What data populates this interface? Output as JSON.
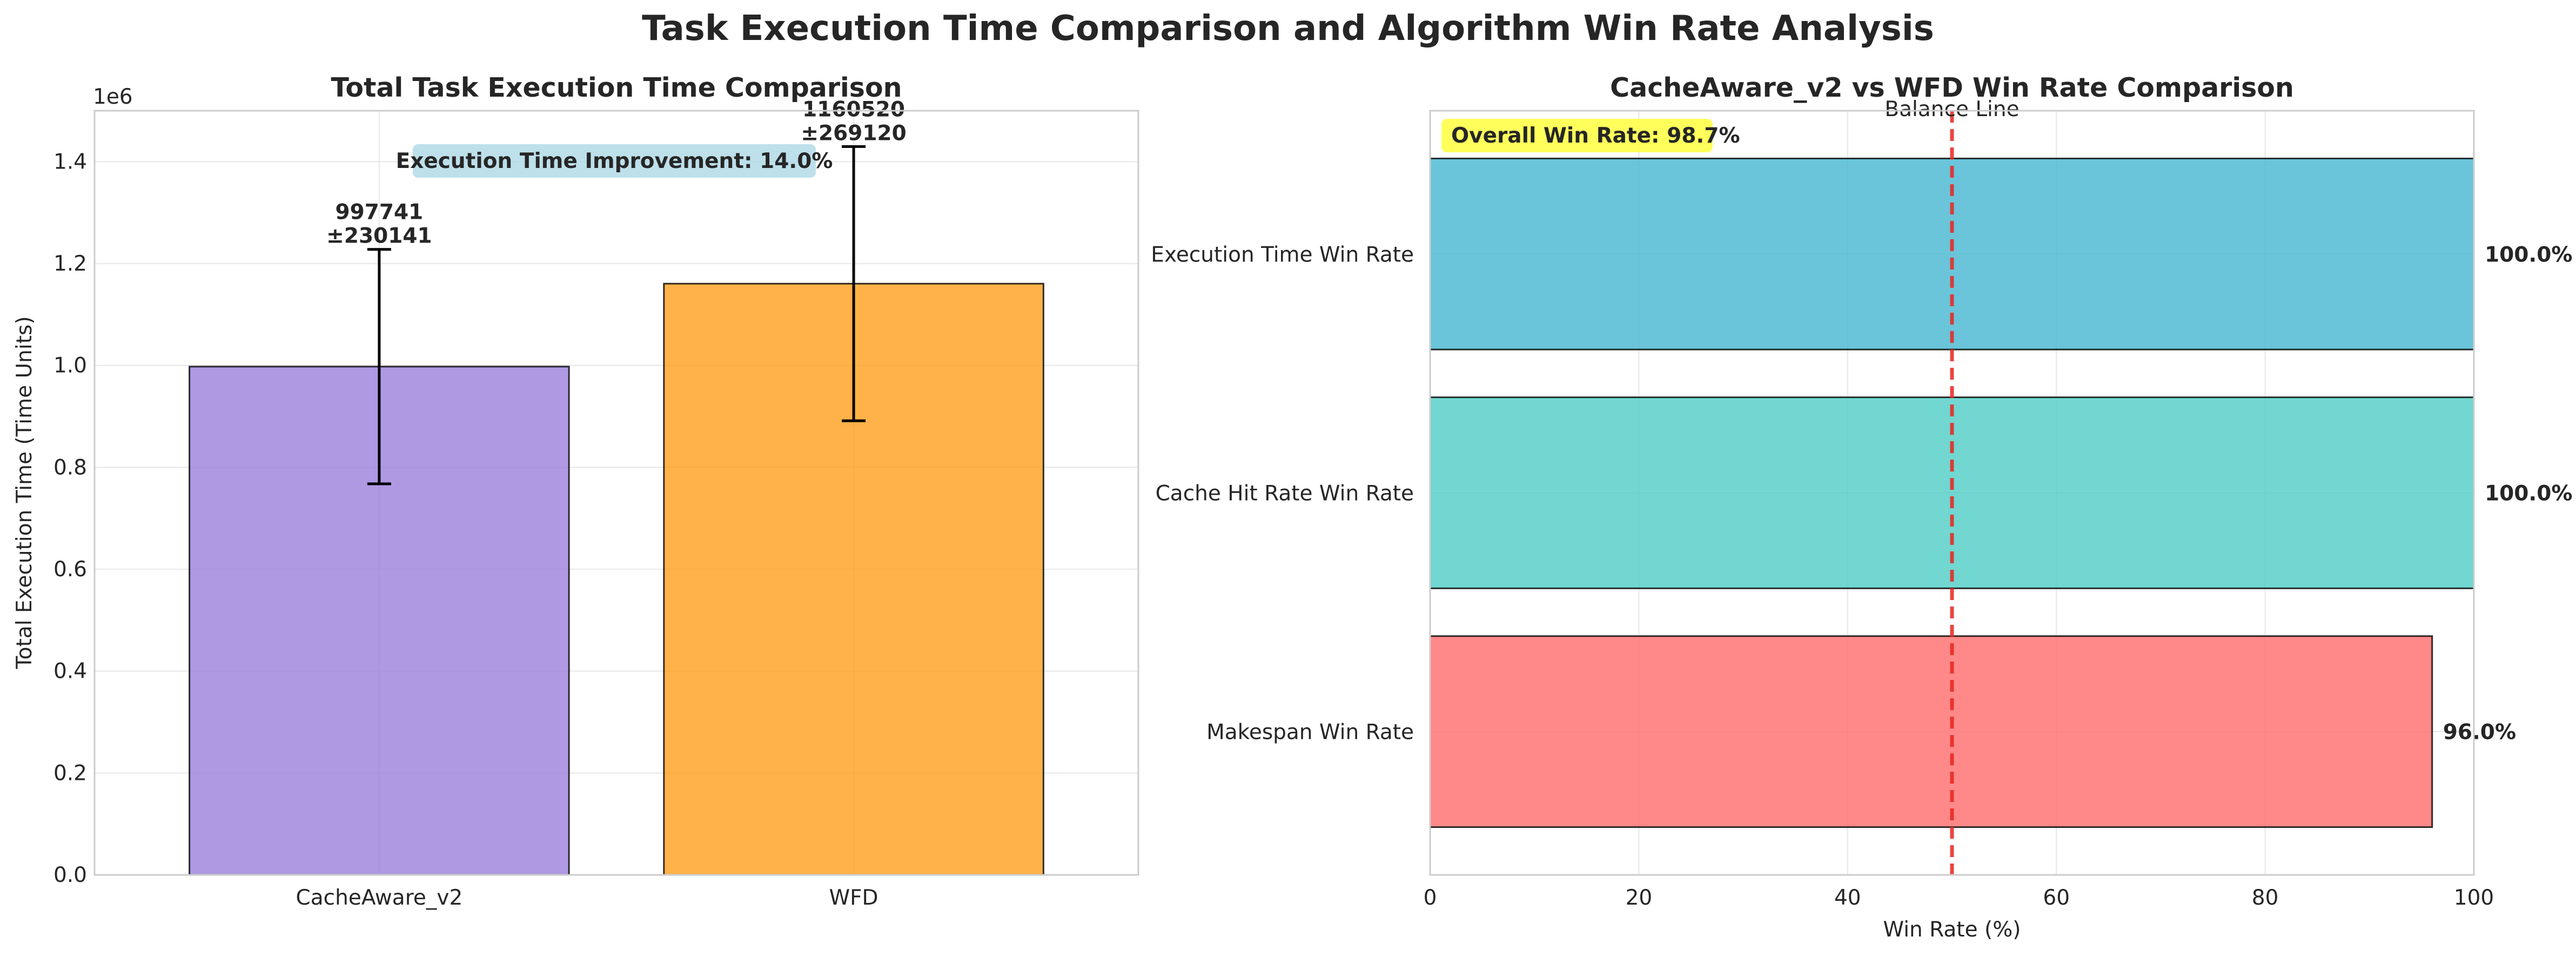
{
  "figure_title": "Task Execution Time Comparison and Algorithm Win Rate Analysis",
  "chart_data": [
    {
      "type": "bar",
      "title": "Total Task Execution Time Comparison",
      "xlabel": "",
      "ylabel": "Total Execution Time (Time Units)",
      "categories": [
        "CacheAware_v2",
        "WFD"
      ],
      "values": [
        997741,
        1160520
      ],
      "errors": [
        230141,
        269120
      ],
      "value_labels": [
        "997741\n±230141",
        "1160520\n±269120"
      ],
      "colors": [
        "#9b7fdb",
        "#ff9f1c"
      ],
      "ylim": [
        0,
        1500000
      ],
      "yticks": [
        0,
        200000,
        400000,
        600000,
        800000,
        1000000,
        1200000,
        1400000
      ],
      "ytick_labels": [
        "0.0",
        "0.2",
        "0.4",
        "0.6",
        "0.8",
        "1.0",
        "1.2",
        "1.4"
      ],
      "y_offset_text": "1e6",
      "annotation": "Execution Time Improvement: 14.0%",
      "annotation_color": "#add8e6",
      "grid": true
    },
    {
      "type": "bar",
      "orientation": "horizontal",
      "title": "CacheAware_v2 vs WFD Win Rate Comparison",
      "xlabel": "Win Rate (%)",
      "ylabel": "",
      "categories": [
        "Makespan Win Rate",
        "Cache Hit Rate Win Rate",
        "Execution Time Win Rate"
      ],
      "values": [
        96.0,
        100.0,
        100.0
      ],
      "value_labels": [
        "96.0%",
        "100.0%",
        "100.0%"
      ],
      "colors": [
        "#ff6b6b",
        "#4ecdc4",
        "#45b7d1"
      ],
      "xlim": [
        0,
        100
      ],
      "xticks": [
        0,
        20,
        40,
        60,
        80,
        100
      ],
      "xtick_labels": [
        "0",
        "20",
        "40",
        "60",
        "80",
        "100"
      ],
      "reference_line": {
        "x": 50,
        "label": "Balance Line",
        "color": "#e8251f",
        "style": "dashed"
      },
      "annotation": "Overall Win Rate: 98.7%",
      "annotation_color": "#ffff33",
      "grid": true
    }
  ]
}
